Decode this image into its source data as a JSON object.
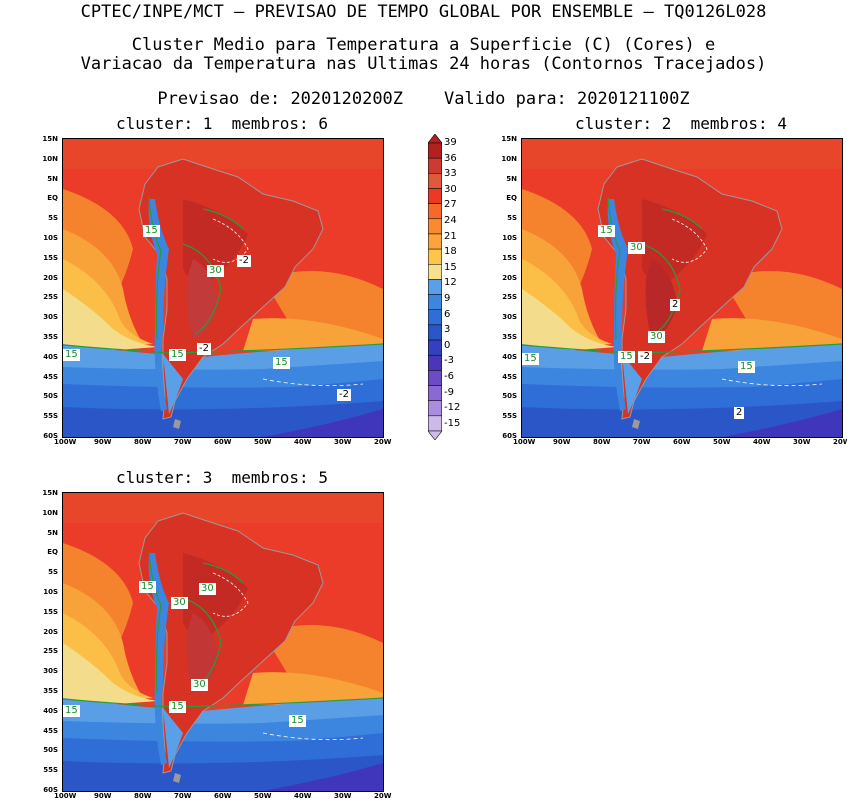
{
  "header": {
    "line1": "CPTEC/INPE/MCT – PREVISAO DE TEMPO GLOBAL POR ENSEMBLE – TQ0126L028",
    "line2": "Cluster Medio para Temperatura a Superficie (C) (Cores) e",
    "line3": "Variacao da Temperatura nas Ultimas 24 horas (Contornos Tracejados)",
    "line4": "Previsao de: 2020120200Z    Valido para: 2020121100Z"
  },
  "panels": [
    {
      "title": "cluster: 1  membros: 6",
      "labels": [
        "15",
        "15",
        "15",
        "15",
        "30",
        "-2",
        "-2",
        "-2"
      ]
    },
    {
      "title": "cluster: 2  membros: 4",
      "labels": [
        "15",
        "15",
        "15",
        "15",
        "30",
        "30",
        "2",
        "-2",
        "2"
      ]
    },
    {
      "title": "cluster: 3  membros: 5",
      "labels": [
        "15",
        "15",
        "15",
        "15",
        "30",
        "30",
        "30"
      ]
    }
  ],
  "axes": {
    "lat_labels": [
      "15N",
      "10N",
      "5N",
      "EQ",
      "5S",
      "10S",
      "15S",
      "20S",
      "25S",
      "30S",
      "35S",
      "40S",
      "45S",
      "50S",
      "55S",
      "60S"
    ],
    "lon_labels": [
      "100W",
      "90W",
      "80W",
      "70W",
      "60W",
      "50W",
      "40W",
      "30W",
      "20W"
    ]
  },
  "colorbar": {
    "labels": [
      "39",
      "36",
      "33",
      "30",
      "27",
      "24",
      "21",
      "18",
      "15",
      "12",
      "9",
      "6",
      "3",
      "0",
      "-3",
      "-6",
      "-9",
      "-12",
      "-15"
    ],
    "colors": [
      "#b32020",
      "#cf3a30",
      "#e05a3a",
      "#ec3a22",
      "#f46a2a",
      "#f88a32",
      "#fba43e",
      "#fcc64c",
      "#f6e08e",
      "#5aa0e8",
      "#3c86e0",
      "#2f6ed6",
      "#2b56c8",
      "#3540c0",
      "#4a36b8",
      "#6a4cc4",
      "#8a6ad0",
      "#aa8ede",
      "#cdbaea"
    ]
  }
}
